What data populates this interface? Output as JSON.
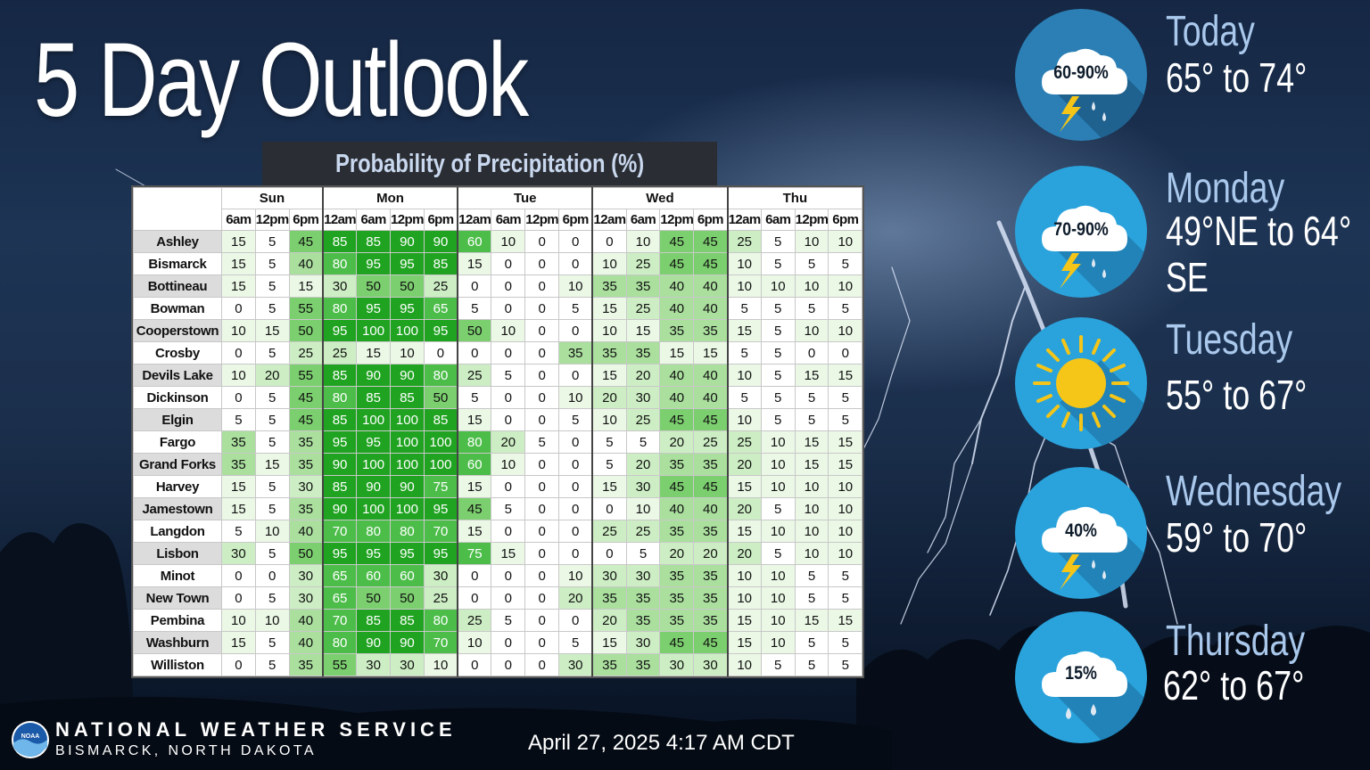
{
  "title": "5 Day Outlook",
  "table_title": "Probability of Precipitation (%)",
  "days": [
    "Sun",
    "Mon",
    "Tue",
    "Wed",
    "Thu"
  ],
  "periods": [
    "6am",
    "12pm",
    "6pm",
    "12am",
    "6am",
    "12pm",
    "6pm",
    "12am",
    "6am",
    "12pm",
    "6pm",
    "12am",
    "6am",
    "12pm",
    "6pm",
    "12am",
    "6am",
    "12pm",
    "6pm"
  ],
  "rows": [
    {
      "name": "Ashley",
      "values": [
        15,
        5,
        45,
        85,
        85,
        90,
        90,
        60,
        10,
        0,
        0,
        0,
        10,
        45,
        45,
        25,
        5,
        10,
        10
      ]
    },
    {
      "name": "Bismarck",
      "values": [
        15,
        5,
        40,
        80,
        95,
        95,
        85,
        15,
        0,
        0,
        0,
        10,
        25,
        45,
        45,
        10,
        5,
        5,
        5
      ]
    },
    {
      "name": "Bottineau",
      "values": [
        15,
        5,
        15,
        30,
        50,
        50,
        25,
        0,
        0,
        0,
        10,
        35,
        35,
        40,
        40,
        10,
        10,
        10,
        10
      ]
    },
    {
      "name": "Bowman",
      "values": [
        0,
        5,
        55,
        80,
        95,
        95,
        65,
        5,
        0,
        0,
        5,
        15,
        25,
        40,
        40,
        5,
        5,
        5,
        5
      ]
    },
    {
      "name": "Cooperstown",
      "values": [
        10,
        15,
        50,
        95,
        100,
        100,
        95,
        50,
        10,
        0,
        0,
        10,
        15,
        35,
        35,
        15,
        5,
        10,
        10
      ]
    },
    {
      "name": "Crosby",
      "values": [
        0,
        5,
        25,
        25,
        15,
        10,
        0,
        0,
        0,
        0,
        35,
        35,
        35,
        15,
        15,
        5,
        5,
        0,
        0
      ]
    },
    {
      "name": "Devils Lake",
      "values": [
        10,
        20,
        55,
        85,
        90,
        90,
        80,
        25,
        5,
        0,
        0,
        15,
        20,
        40,
        40,
        10,
        5,
        15,
        15
      ]
    },
    {
      "name": "Dickinson",
      "values": [
        0,
        5,
        45,
        80,
        85,
        85,
        50,
        5,
        0,
        0,
        10,
        20,
        30,
        40,
        40,
        5,
        5,
        5,
        5
      ]
    },
    {
      "name": "Elgin",
      "values": [
        5,
        5,
        45,
        85,
        100,
        100,
        85,
        15,
        0,
        0,
        5,
        10,
        25,
        45,
        45,
        10,
        5,
        5,
        5
      ]
    },
    {
      "name": "Fargo",
      "values": [
        35,
        5,
        35,
        95,
        95,
        100,
        100,
        80,
        20,
        5,
        0,
        5,
        5,
        20,
        25,
        25,
        10,
        15,
        15
      ]
    },
    {
      "name": "Grand Forks",
      "values": [
        35,
        15,
        35,
        90,
        100,
        100,
        100,
        60,
        10,
        0,
        0,
        5,
        20,
        35,
        35,
        20,
        10,
        15,
        15
      ]
    },
    {
      "name": "Harvey",
      "values": [
        15,
        5,
        30,
        85,
        90,
        90,
        75,
        15,
        0,
        0,
        0,
        15,
        30,
        45,
        45,
        15,
        10,
        10,
        10
      ]
    },
    {
      "name": "Jamestown",
      "values": [
        15,
        5,
        35,
        90,
        100,
        100,
        95,
        45,
        5,
        0,
        0,
        0,
        10,
        40,
        40,
        20,
        5,
        10,
        10
      ]
    },
    {
      "name": "Langdon",
      "values": [
        5,
        10,
        40,
        70,
        80,
        80,
        70,
        15,
        0,
        0,
        0,
        25,
        25,
        35,
        35,
        15,
        10,
        10,
        10
      ]
    },
    {
      "name": "Lisbon",
      "values": [
        30,
        5,
        50,
        95,
        95,
        95,
        95,
        75,
        15,
        0,
        0,
        0,
        5,
        20,
        20,
        20,
        5,
        10,
        10
      ]
    },
    {
      "name": "Minot",
      "values": [
        0,
        0,
        30,
        65,
        60,
        60,
        30,
        0,
        0,
        0,
        10,
        30,
        30,
        35,
        35,
        10,
        10,
        5,
        5
      ]
    },
    {
      "name": "New Town",
      "values": [
        0,
        5,
        30,
        65,
        50,
        50,
        25,
        0,
        0,
        0,
        20,
        35,
        35,
        35,
        35,
        10,
        10,
        5,
        5
      ]
    },
    {
      "name": "Pembina",
      "values": [
        10,
        10,
        40,
        70,
        85,
        85,
        80,
        25,
        5,
        0,
        0,
        20,
        35,
        35,
        35,
        15,
        10,
        15,
        15
      ]
    },
    {
      "name": "Washburn",
      "values": [
        15,
        5,
        40,
        80,
        90,
        90,
        70,
        10,
        0,
        0,
        5,
        15,
        30,
        45,
        45,
        15,
        10,
        5,
        5
      ]
    },
    {
      "name": "Williston",
      "values": [
        0,
        5,
        35,
        55,
        30,
        30,
        10,
        0,
        0,
        0,
        30,
        35,
        35,
        30,
        30,
        10,
        5,
        5,
        5
      ]
    }
  ],
  "forecast": [
    {
      "day": "Today",
      "temps": "65° to 74°",
      "icon": "thunderstorm-icon",
      "pct": "60-90%"
    },
    {
      "day": "Monday",
      "temps": "49°NE to 64°",
      "temps2": "SE",
      "icon": "thunderstorm-icon",
      "pct": "70-90%"
    },
    {
      "day": "Tuesday",
      "temps": "55° to 67°",
      "icon": "sun-icon",
      "pct": ""
    },
    {
      "day": "Wednesday",
      "temps": "59° to 70°",
      "icon": "thunderstorm-icon",
      "pct": "40%"
    },
    {
      "day": "Thursday",
      "temps": "62° to 67°",
      "icon": "rain-icon",
      "pct": "15%"
    }
  ],
  "footer": {
    "org": "NATIONAL WEATHER SERVICE",
    "location": "BISMARCK, NORTH DAKOTA",
    "logo_text": "NOAA",
    "timestamp": "April 27, 2025 4:17 AM CDT"
  },
  "colors": {
    "icon_circle": "#2aa3dc",
    "day_label": "#a9c8ec"
  }
}
